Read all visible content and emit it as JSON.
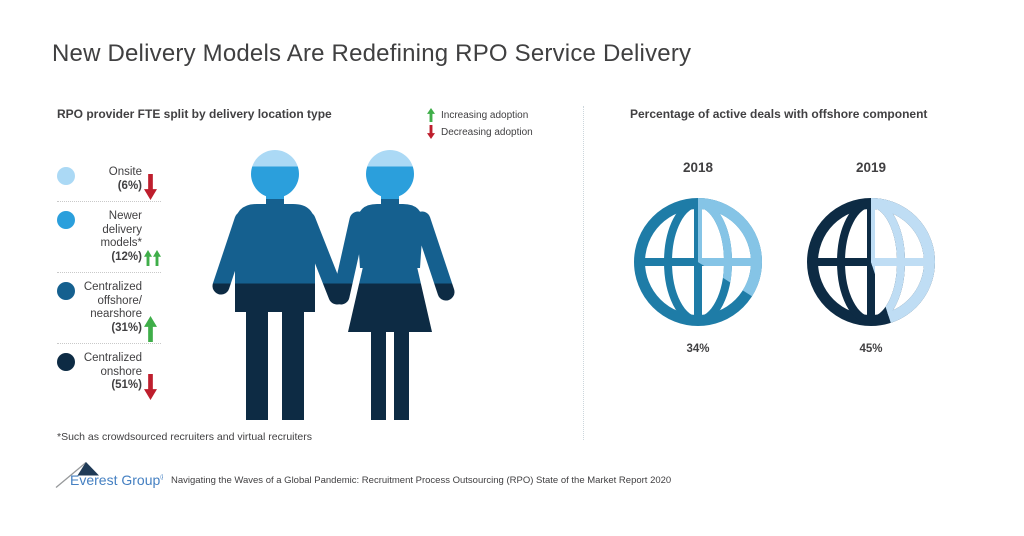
{
  "title": "New Delivery Models Are Redefining RPO Service Delivery",
  "left_panel": {
    "heading": "RPO provider FTE split by delivery location type",
    "adoption_legend": [
      {
        "label": "Increasing adoption",
        "direction": "up",
        "color": "#3FAE49"
      },
      {
        "label": "Decreasing adoption",
        "direction": "down",
        "color": "#BE1E2D"
      }
    ],
    "segments": [
      {
        "label_lines": [
          "Onsite"
        ],
        "pct": 6,
        "pct_label": "(6%)",
        "color": "#ABD9F5",
        "trend": "down",
        "trend_count": 1
      },
      {
        "label_lines": [
          "Newer",
          "delivery",
          "models*"
        ],
        "pct": 12,
        "pct_label": "(12%)",
        "color": "#2B9FDC",
        "trend": "up",
        "trend_count": 2
      },
      {
        "label_lines": [
          "Centralized",
          "offshore/",
          "nearshore"
        ],
        "pct": 31,
        "pct_label": "(31%)",
        "color": "#15608F",
        "trend": "up",
        "trend_count": 1
      },
      {
        "label_lines": [
          "Centralized",
          "onshore"
        ],
        "pct": 51,
        "pct_label": "(51%)",
        "color": "#0D2B44",
        "trend": "down",
        "trend_count": 1
      }
    ],
    "footnote": "*Such as crowdsourced recruiters and virtual recruiters"
  },
  "right_panel": {
    "heading": "Percentage of active deals with offshore component",
    "globes": [
      {
        "year": "2018",
        "pct": 34,
        "pct_label": "34%",
        "base_color": "#1E7CA7",
        "highlight_color": "#85C4E6"
      },
      {
        "year": "2019",
        "pct": 45,
        "pct_label": "45%",
        "base_color": "#0D2B44",
        "highlight_color": "#BFDDF4"
      }
    ]
  },
  "footer": {
    "logo_text": "Everest Group",
    "registered_mark": "®",
    "source": "Navigating the Waves of a Global Pandemic: Recruitment Process Outsourcing (RPO) State of the Market Report 2020",
    "logo_text_color": "#4580C2",
    "logo_mountain_color": "#1F3A56"
  },
  "trend_colors": {
    "up": "#3FAE49",
    "down": "#BE1E2D"
  },
  "chart_data": [
    {
      "type": "pie",
      "title": "RPO provider FTE split by delivery location type",
      "categories": [
        "Onsite",
        "Newer delivery models*",
        "Centralized offshore/nearshore",
        "Centralized onshore"
      ],
      "values": [
        6,
        12,
        31,
        51
      ],
      "units": "% of provider FTEs",
      "trends": [
        "decreasing",
        "increasing (double arrow)",
        "increasing",
        "decreasing"
      ],
      "colors": [
        "#ABD9F5",
        "#2B9FDC",
        "#15608F",
        "#0D2B44"
      ],
      "note": "*Such as crowdsourced recruiters and virtual recruiters",
      "legend_position": "left",
      "render": "pictogram: man and woman silhouettes split into horizontal bands by percentage, top to bottom"
    },
    {
      "type": "pie",
      "title": "Percentage of active deals with offshore component",
      "categories": [
        "2018",
        "2019"
      ],
      "values": [
        34,
        45
      ],
      "units": "% of active deals",
      "colors_base": [
        "#1E7CA7",
        "#0D2B44"
      ],
      "colors_highlight": [
        "#85C4E6",
        "#BFDDF4"
      ],
      "render": "globe icons; highlight wedge sweeps clockwise from 12 o'clock by percentage"
    }
  ]
}
